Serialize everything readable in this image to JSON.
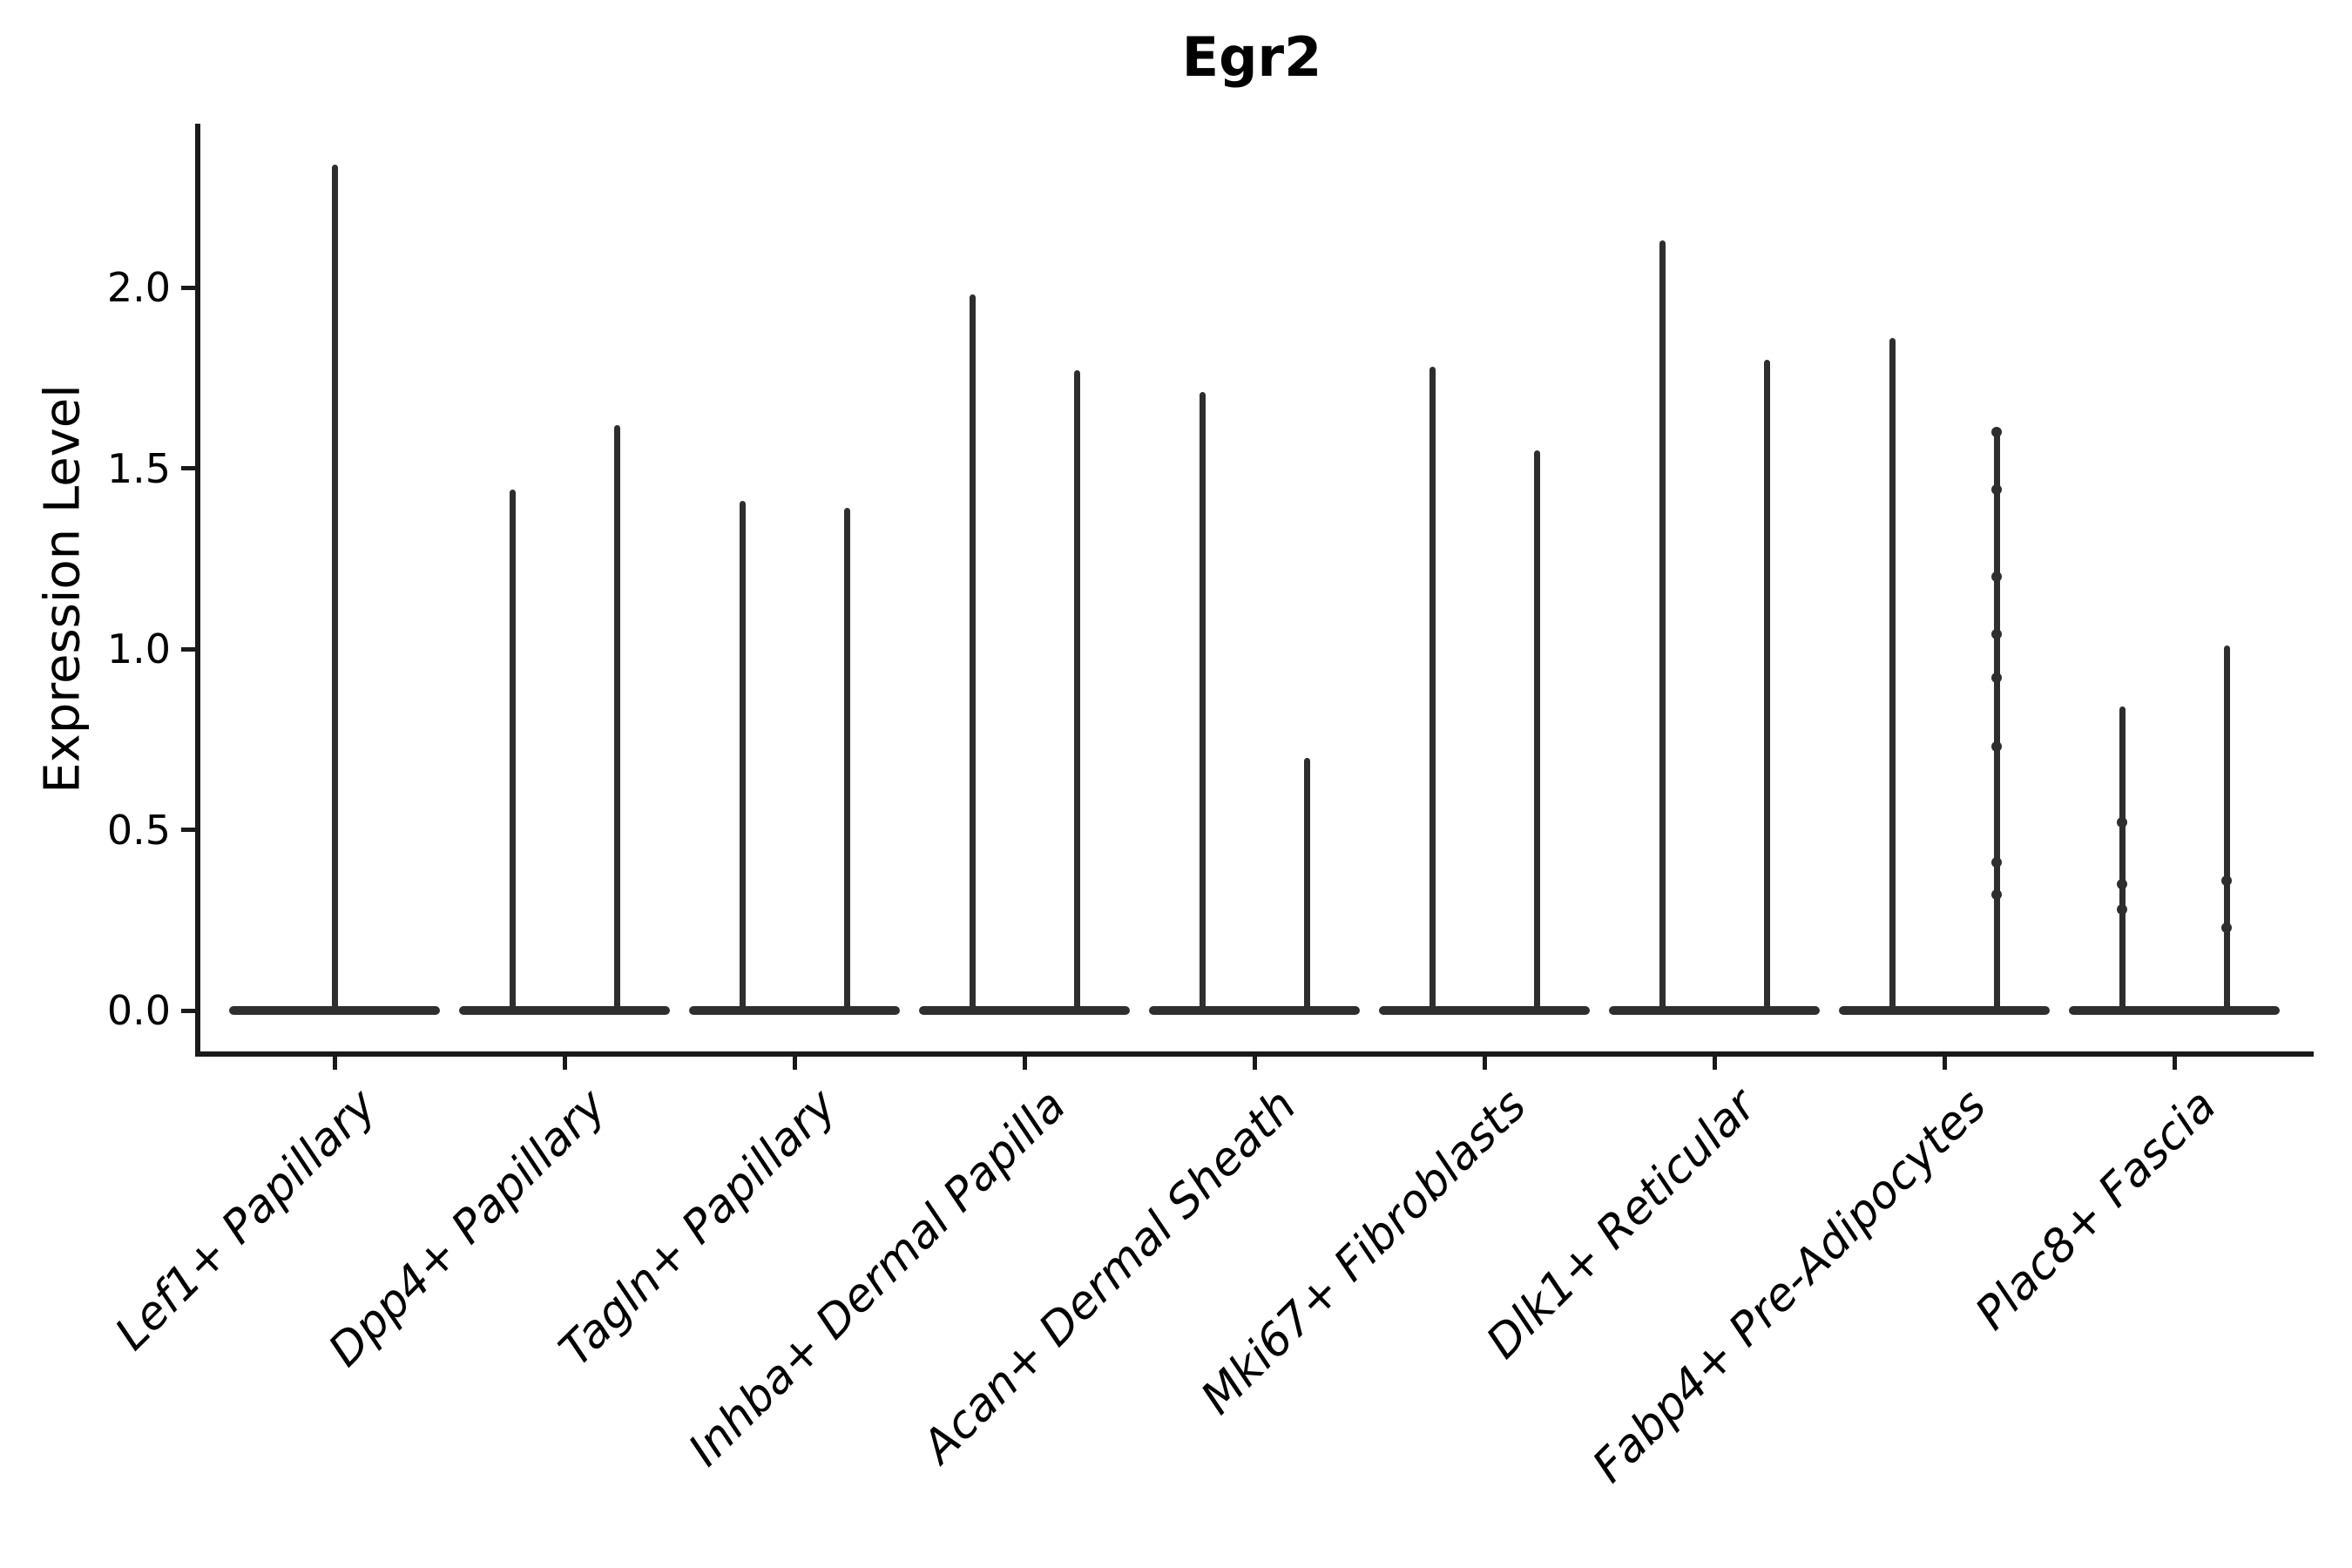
{
  "title": "Egr2",
  "y_axis": {
    "label": "Expression Level"
  },
  "chart_data": {
    "type": "violin",
    "title": "Egr2",
    "xlabel": "",
    "ylabel": "Expression Level",
    "ylim": [
      -0.12,
      2.45
    ],
    "yticks": [
      0.0,
      0.5,
      1.0,
      1.5,
      2.0
    ],
    "grid": false,
    "legend": null,
    "baseline_value": 0.0,
    "description": "Stacked violin plot of Egr2 expression; each cell population shows violins collapsed at 0 with thin density spikes reaching the maximum expression values listed below.",
    "categories": [
      "Lef1+ Papillary",
      "Dpp4+ Papillary",
      "Tagln+ Papillary",
      "Inhba+ Dermal Papilla",
      "Acan+ Dermal Sheath",
      "Mki67+ Fibroblasts",
      "Dlk1+ Reticular",
      "Fabp4+ Pre-Adipocytes",
      "Plac8+ Fascia"
    ],
    "series": [
      {
        "category": "Lef1+ Papillary",
        "spike_max_values": [
          2.34
        ],
        "jitter_points": [
          []
        ]
      },
      {
        "category": "Dpp4+ Papillary",
        "spike_max_values": [
          1.44,
          1.62
        ],
        "jitter_points": [
          [],
          []
        ]
      },
      {
        "category": "Tagln+ Papillary",
        "spike_max_values": [
          1.41,
          1.39
        ],
        "jitter_points": [
          [],
          []
        ]
      },
      {
        "category": "Inhba+ Dermal Papilla",
        "spike_max_values": [
          1.98,
          1.77
        ],
        "jitter_points": [
          [],
          []
        ]
      },
      {
        "category": "Acan+ Dermal Sheath",
        "spike_max_values": [
          1.71,
          0.7
        ],
        "jitter_points": [
          [],
          []
        ]
      },
      {
        "category": "Mki67+ Fibroblasts",
        "spike_max_values": [
          1.78,
          1.55
        ],
        "jitter_points": [
          [],
          []
        ]
      },
      {
        "category": "Dlk1+ Reticular",
        "spike_max_values": [
          2.13,
          1.8
        ],
        "jitter_points": [
          [],
          []
        ]
      },
      {
        "category": "Fabp4+ Pre-Adipocytes",
        "spike_max_values": [
          1.86,
          1.6
        ],
        "jitter_points": [
          [],
          [
            1.6,
            1.44,
            1.2,
            1.04,
            0.92,
            0.73,
            0.41,
            0.32
          ]
        ]
      },
      {
        "category": "Plac8+ Fascia",
        "spike_max_values": [
          0.84,
          1.01
        ],
        "jitter_points": [
          [
            0.52,
            0.35,
            0.28
          ],
          [
            0.36,
            0.23
          ]
        ]
      }
    ]
  }
}
